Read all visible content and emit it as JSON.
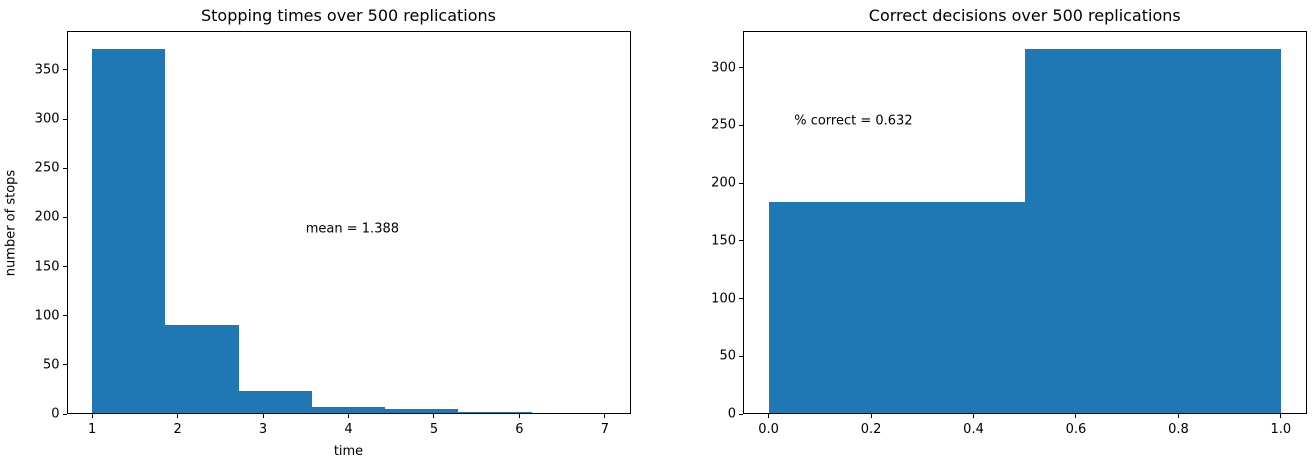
{
  "figure": {
    "background": "#ffffff"
  },
  "chart_data": [
    {
      "type": "bar",
      "subtype": "histogram",
      "title": "Stopping times over 500 replications",
      "xlabel": "time",
      "ylabel": "number of stops",
      "bar_color": "#1f77b4",
      "bin_edges": [
        1.0,
        1.857,
        2.714,
        3.571,
        4.429,
        5.286,
        6.143,
        7.0
      ],
      "counts": [
        371,
        91,
        23,
        7,
        5,
        2,
        1
      ],
      "xlim": [
        0.7,
        7.3
      ],
      "ylim": [
        0,
        389.55
      ],
      "x_ticks": [
        1,
        2,
        3,
        4,
        5,
        6,
        7
      ],
      "x_tick_labels": [
        "1",
        "2",
        "3",
        "4",
        "5",
        "6",
        "7"
      ],
      "y_ticks": [
        0,
        50,
        100,
        150,
        200,
        250,
        300,
        350
      ],
      "y_tick_labels": [
        "0",
        "50",
        "100",
        "150",
        "200",
        "250",
        "300",
        "350"
      ],
      "annotation": {
        "text": "mean = 1.388",
        "x": 3.5,
        "y": 188
      },
      "grid": false,
      "legend": false
    },
    {
      "type": "bar",
      "subtype": "histogram",
      "title": "Correct decisions over 500 replications",
      "xlabel": "",
      "ylabel": "",
      "bar_color": "#1f77b4",
      "bin_edges": [
        0.0,
        0.5,
        1.0
      ],
      "counts": [
        184,
        316
      ],
      "xlim": [
        -0.05,
        1.05
      ],
      "ylim": [
        0,
        331.8
      ],
      "x_ticks": [
        0.0,
        0.2,
        0.4,
        0.6,
        0.8,
        1.0
      ],
      "x_tick_labels": [
        "0.0",
        "0.2",
        "0.4",
        "0.6",
        "0.8",
        "1.0"
      ],
      "y_ticks": [
        0,
        50,
        100,
        150,
        200,
        250,
        300
      ],
      "y_tick_labels": [
        "0",
        "50",
        "100",
        "150",
        "200",
        "250",
        "300"
      ],
      "annotation": {
        "text": "% correct = 0.632",
        "x": 0.05,
        "y": 254
      },
      "grid": false,
      "legend": false
    }
  ]
}
